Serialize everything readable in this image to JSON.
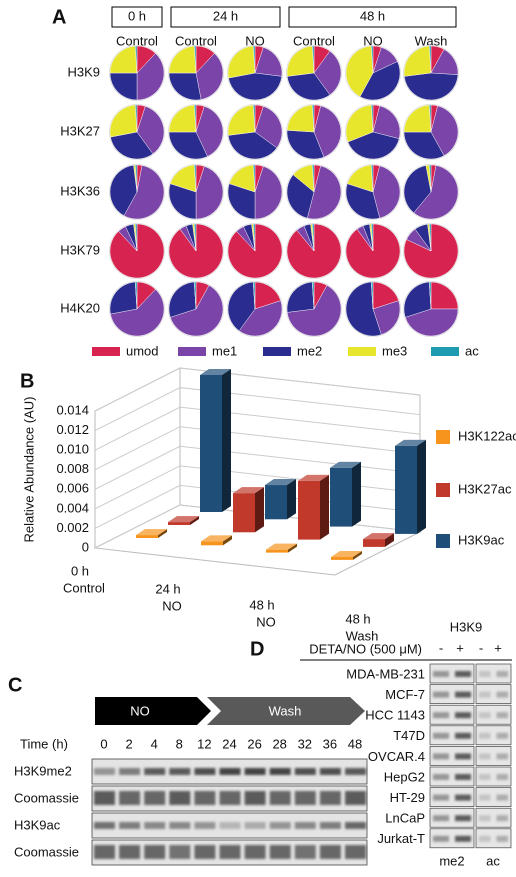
{
  "panel_labels": [
    "A",
    "B",
    "C",
    "D"
  ],
  "chart_data": [
    {
      "type": "pie-grid",
      "column_groups": [
        "0 h",
        "24 h",
        "48 h"
      ],
      "columns": [
        "Control",
        "Control",
        "NO",
        "Control",
        "NO",
        "Wash"
      ],
      "rows": [
        "H3K9",
        "H3K27",
        "H3K36",
        "H3K79",
        "H4K20"
      ],
      "series": [
        {
          "name": "umod",
          "color": "#d6234f"
        },
        {
          "name": "me1",
          "color": "#7b44a8"
        },
        {
          "name": "me2",
          "color": "#2a2d8f"
        },
        {
          "name": "me3",
          "color": "#e8e62c"
        },
        {
          "name": "ac",
          "color": "#1e9bb0"
        }
      ],
      "values": [
        [
          [
            12,
            38,
            25,
            24,
            1
          ],
          [
            12,
            35,
            28,
            24,
            1
          ],
          [
            5,
            22,
            45,
            27,
            1
          ],
          [
            10,
            30,
            33,
            26,
            1
          ],
          [
            5,
            13,
            40,
            41,
            1
          ],
          [
            8,
            18,
            47,
            26,
            1
          ]
        ],
        [
          [
            5,
            35,
            32,
            27,
            1
          ],
          [
            5,
            38,
            32,
            24,
            1
          ],
          [
            5,
            30,
            38,
            26,
            1
          ],
          [
            4,
            40,
            32,
            23,
            1
          ],
          [
            4,
            25,
            40,
            30,
            1
          ],
          [
            4,
            38,
            33,
            24,
            1
          ]
        ],
        [
          [
            3,
            55,
            40,
            1,
            1
          ],
          [
            5,
            45,
            30,
            19,
            1
          ],
          [
            5,
            45,
            30,
            19,
            1
          ],
          [
            4,
            50,
            32,
            13,
            1
          ],
          [
            4,
            42,
            34,
            19,
            1
          ],
          [
            3,
            58,
            36,
            2,
            1
          ]
        ],
        [
          [
            88,
            5,
            5,
            1,
            1
          ],
          [
            90,
            4,
            4,
            1,
            1
          ],
          [
            88,
            5,
            5,
            1,
            1
          ],
          [
            89,
            5,
            4,
            1,
            1
          ],
          [
            90,
            4,
            4,
            1,
            1
          ],
          [
            82,
            8,
            8,
            1,
            1
          ]
        ],
        [
          [
            12,
            60,
            27,
            0,
            1
          ],
          [
            8,
            62,
            29,
            0,
            1
          ],
          [
            20,
            40,
            39,
            0,
            1
          ],
          [
            8,
            65,
            26,
            0,
            1
          ],
          [
            20,
            25,
            54,
            0,
            1
          ],
          [
            25,
            45,
            29,
            0,
            1
          ]
        ]
      ]
    },
    {
      "type": "bar3d",
      "ylabel": "Relative Abundance (AU)",
      "categories": [
        "0 h",
        "24 h",
        "48 h",
        "48 h"
      ],
      "subcategories": [
        "Control",
        "NO",
        "NO",
        "Wash"
      ],
      "series": [
        {
          "name": "H3K122ac",
          "color": "#f7941d",
          "values": [
            0.0003,
            0.0004,
            0.0003,
            0.0003
          ]
        },
        {
          "name": "H3K27ac",
          "color": "#c0392b",
          "values": [
            0.0003,
            0.004,
            0.006,
            0.0008
          ]
        },
        {
          "name": "H3K9ac",
          "color": "#1f4e79",
          "values": [
            0.014,
            0.0035,
            0.006,
            0.009
          ]
        }
      ],
      "ylim": [
        0,
        0.014
      ],
      "yticks": [
        0,
        0.002,
        0.004,
        0.006,
        0.008,
        {
          "value": 0.01,
          "label": "0.010"
        },
        0.012,
        0.014
      ]
    }
  ],
  "panel_c": {
    "arrows": [
      "NO",
      "Wash"
    ],
    "time_label": "Time (h)",
    "times": [
      0,
      2,
      4,
      8,
      12,
      24,
      26,
      28,
      32,
      36,
      48
    ],
    "rows": [
      "H3K9me2",
      "Coomassie",
      "H3K9ac",
      "Coomassie"
    ]
  },
  "panel_d": {
    "title": "H3K9",
    "treatment": "DETA/NO (500 μM)",
    "signs": [
      "-",
      "+",
      "-",
      "+"
    ],
    "cell_lines": [
      "MDA-MB-231",
      "MCF-7",
      "HCC 1143",
      "T47D",
      "OVCAR.4",
      "HepG2",
      "HT-29",
      "LnCaP",
      "Jurkat-T"
    ],
    "columns": [
      "me2",
      "ac"
    ]
  }
}
